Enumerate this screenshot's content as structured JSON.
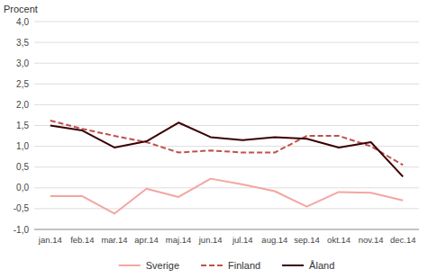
{
  "chart_data": {
    "type": "line",
    "ylabel": "Procent",
    "categories": [
      "jan.14",
      "feb.14",
      "mar.14",
      "apr.14",
      "maj.14",
      "jun.14",
      "jul.14",
      "aug.14",
      "sep.14",
      "okt.14",
      "nov.14",
      "dec.14"
    ],
    "series": [
      {
        "name": "Sverige",
        "color": "#F4A6A0",
        "line_style": "solid",
        "values": [
          -0.2,
          -0.2,
          -0.62,
          -0.02,
          -0.22,
          0.22,
          0.08,
          -0.08,
          -0.45,
          -0.1,
          -0.12,
          -0.3
        ]
      },
      {
        "name": "Finland",
        "color": "#C0504D",
        "line_style": "dashed",
        "values": [
          1.62,
          1.42,
          1.25,
          1.1,
          0.85,
          0.9,
          0.85,
          0.85,
          1.25,
          1.25,
          1.0,
          0.55
        ]
      },
      {
        "name": "Åland",
        "color": "#3B0000",
        "line_style": "solid",
        "values": [
          1.5,
          1.38,
          0.97,
          1.12,
          1.57,
          1.22,
          1.15,
          1.22,
          1.18,
          0.97,
          1.1,
          0.27
        ]
      }
    ],
    "ylim": [
      -1.0,
      4.0
    ],
    "yticks": [
      {
        "value": -1.0,
        "label": "-1,0"
      },
      {
        "value": -0.5,
        "label": "-0,5"
      },
      {
        "value": 0.0,
        "label": "0,0"
      },
      {
        "value": 0.5,
        "label": "0,5"
      },
      {
        "value": 1.0,
        "label": "1,0"
      },
      {
        "value": 1.5,
        "label": "1,5"
      },
      {
        "value": 2.0,
        "label": "2,0"
      },
      {
        "value": 2.5,
        "label": "2,5"
      },
      {
        "value": 3.0,
        "label": "3,0"
      },
      {
        "value": 3.5,
        "label": "3,5"
      },
      {
        "value": 4.0,
        "label": "4,0"
      }
    ],
    "grid": true,
    "legend": "bottom"
  }
}
